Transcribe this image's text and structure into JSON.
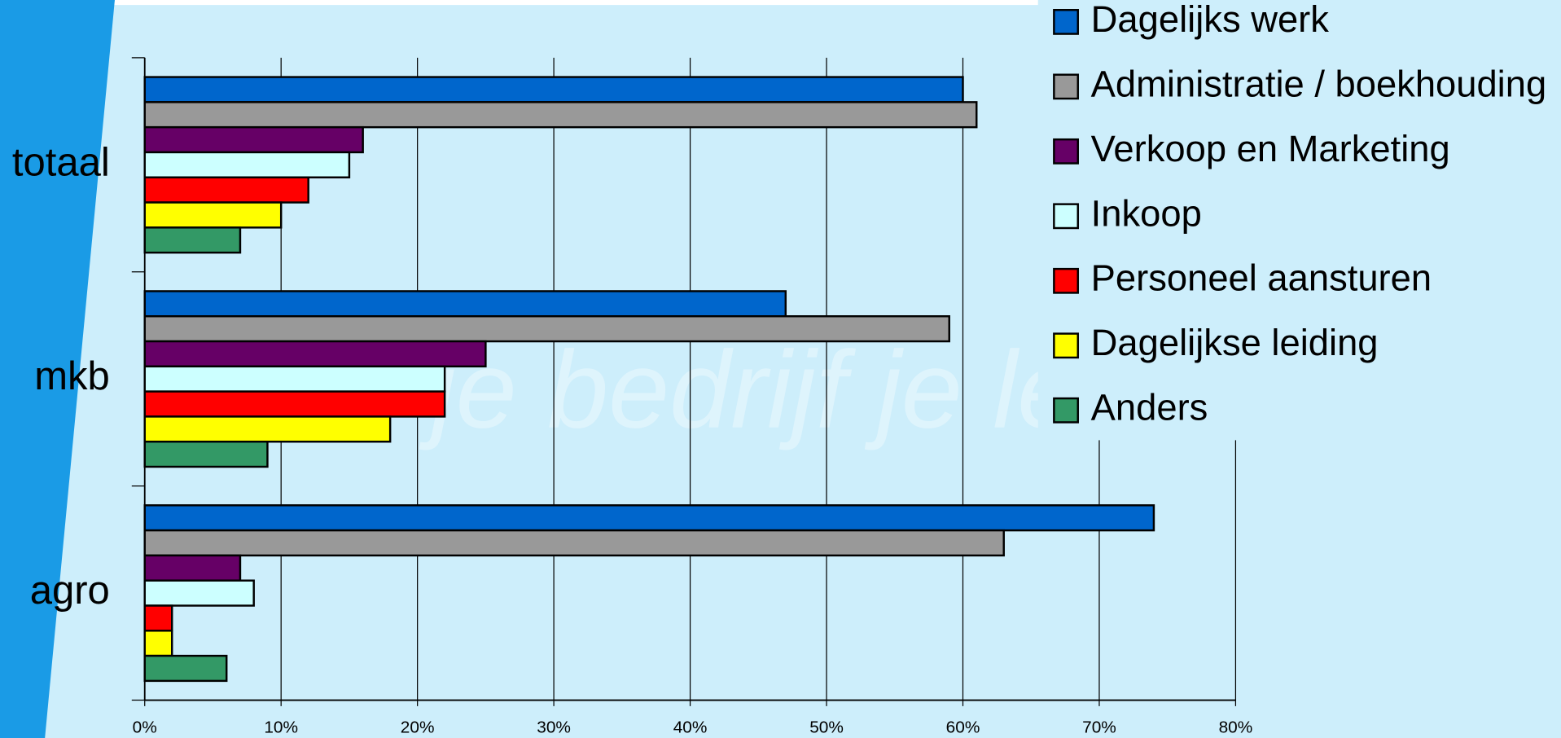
{
  "chart_data": {
    "type": "bar",
    "orientation": "horizontal",
    "categories": [
      "totaal",
      "mkb",
      "agro"
    ],
    "series": [
      {
        "name": "Dagelijks werk",
        "color": "#0066cc",
        "values": [
          60,
          47,
          74
        ]
      },
      {
        "name": "Administratie / boekhouding",
        "color": "#999999",
        "values": [
          61,
          59,
          63
        ]
      },
      {
        "name": "Verkoop en Marketing",
        "color": "#660066",
        "values": [
          16,
          25,
          7
        ]
      },
      {
        "name": "Inkoop",
        "color": "#ccffff",
        "values": [
          15,
          22,
          8
        ]
      },
      {
        "name": "Personeel aansturen",
        "color": "#ff0000",
        "values": [
          12,
          22,
          2
        ]
      },
      {
        "name": "Dagelijkse leiding",
        "color": "#ffff00",
        "values": [
          10,
          18,
          2
        ]
      },
      {
        "name": "Anders",
        "color": "#339966",
        "values": [
          7,
          9,
          6
        ]
      }
    ],
    "xlim": [
      0,
      80
    ],
    "xticks": [
      {
        "value": 0,
        "label": "0%"
      },
      {
        "value": 10,
        "label": "10%"
      },
      {
        "value": 20,
        "label": "20%"
      },
      {
        "value": 30,
        "label": "30%"
      },
      {
        "value": 40,
        "label": "40%"
      },
      {
        "value": 50,
        "label": "50%"
      },
      {
        "value": 60,
        "label": "60%"
      },
      {
        "value": 70,
        "label": "70%"
      },
      {
        "value": 80,
        "label": "80%"
      }
    ],
    "grid": true,
    "legend": "top-right",
    "watermark": "je bedrijf je leven is"
  }
}
